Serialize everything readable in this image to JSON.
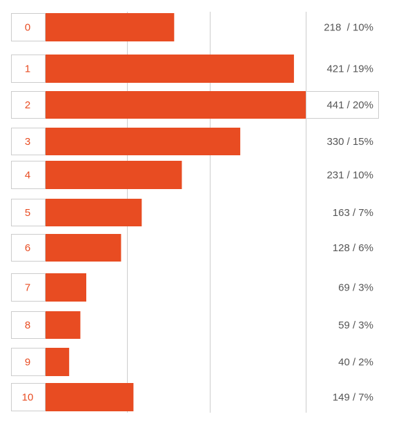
{
  "theme": {
    "bar_color": "#e84c22",
    "label_text_color": "#e84c22",
    "value_text_color": "#555555",
    "grid_color": "#cccccc",
    "box_border_color": "#cccccc"
  },
  "chart_data": {
    "type": "bar",
    "orientation": "horizontal",
    "title": "",
    "xlabel": "",
    "ylabel": "",
    "grid": true,
    "highlighted_category": "2",
    "categories": [
      "0",
      "1",
      "2",
      "3",
      "4",
      "5",
      "6",
      "7",
      "8",
      "9",
      "10"
    ],
    "values": [
      218,
      421,
      441,
      330,
      231,
      163,
      128,
      69,
      59,
      40,
      149
    ],
    "value_labels": [
      "218  / 10%",
      "421 / 19%",
      "441 / 20%",
      "330 / 15%",
      "231 / 10%",
      "163 / 7%",
      "128 / 6%",
      "69 / 3%",
      "59 / 3%",
      "40 / 2%",
      "149 / 7%"
    ]
  }
}
